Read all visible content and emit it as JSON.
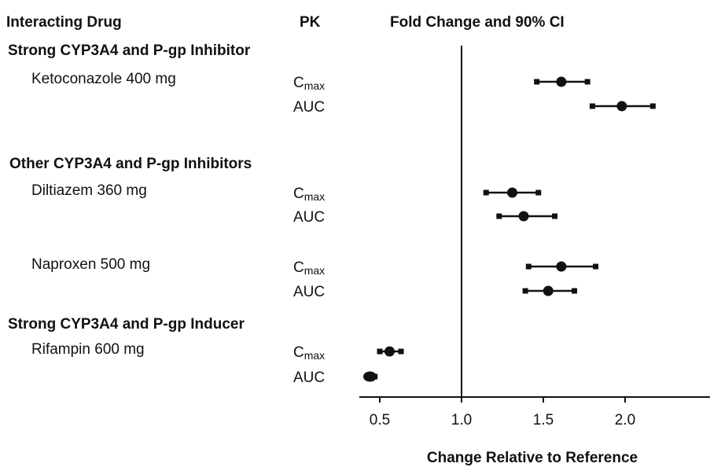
{
  "headers": {
    "drug": "Interacting Drug",
    "pk": "PK",
    "fold": "Fold Change and 90% CI"
  },
  "groups": [
    {
      "label": "Strong CYP3A4 and P-gp Inhibitor"
    },
    {
      "label": "Other CYP3A4 and P-gp Inhibitors"
    },
    {
      "label": "Strong CYP3A4 and P-gp Inducer"
    }
  ],
  "chart_data": {
    "type": "forest",
    "xlabel": "Change Relative to Reference",
    "xlim": [
      0.4,
      2.45
    ],
    "xticks": [
      0.5,
      1.0,
      1.5,
      2.0
    ],
    "xtick_labels": [
      "0.5",
      "1.0",
      "1.5",
      "2.0"
    ],
    "reference_line": 1.0,
    "rows": [
      {
        "group": "Strong CYP3A4 and P-gp Inhibitor",
        "drug": "Ketoconazole 400 mg",
        "pk": "Cmax",
        "pk_main": "C",
        "pk_sub": "max",
        "estimate": 1.61,
        "lower": 1.46,
        "upper": 1.77
      },
      {
        "group": "Strong CYP3A4 and P-gp Inhibitor",
        "drug": "",
        "pk": "AUC",
        "pk_main": "AUC",
        "pk_sub": "",
        "estimate": 1.98,
        "lower": 1.8,
        "upper": 2.17
      },
      {
        "group": "Other CYP3A4 and P-gp Inhibitors",
        "drug": "Diltiazem 360 mg",
        "pk": "Cmax",
        "pk_main": "C",
        "pk_sub": "max",
        "estimate": 1.31,
        "lower": 1.15,
        "upper": 1.47
      },
      {
        "group": "Other CYP3A4 and P-gp Inhibitors",
        "drug": "",
        "pk": "AUC",
        "pk_main": "AUC",
        "pk_sub": "",
        "estimate": 1.38,
        "lower": 1.23,
        "upper": 1.57
      },
      {
        "group": "Other CYP3A4 and P-gp Inhibitors",
        "drug": "Naproxen 500 mg",
        "pk": "Cmax",
        "pk_main": "C",
        "pk_sub": "max",
        "estimate": 1.61,
        "lower": 1.41,
        "upper": 1.82
      },
      {
        "group": "Other CYP3A4 and P-gp Inhibitors",
        "drug": "",
        "pk": "AUC",
        "pk_main": "AUC",
        "pk_sub": "",
        "estimate": 1.53,
        "lower": 1.39,
        "upper": 1.69
      },
      {
        "group": "Strong CYP3A4 and P-gp Inducer",
        "drug": "Rifampin 600 mg",
        "pk": "Cmax",
        "pk_main": "C",
        "pk_sub": "max",
        "estimate": 0.56,
        "lower": 0.5,
        "upper": 0.63
      },
      {
        "group": "Strong CYP3A4 and P-gp Inducer",
        "drug": "",
        "pk": "AUC",
        "pk_main": "AUC",
        "pk_sub": "",
        "estimate": 0.44,
        "lower": 0.42,
        "upper": 0.47
      }
    ]
  }
}
